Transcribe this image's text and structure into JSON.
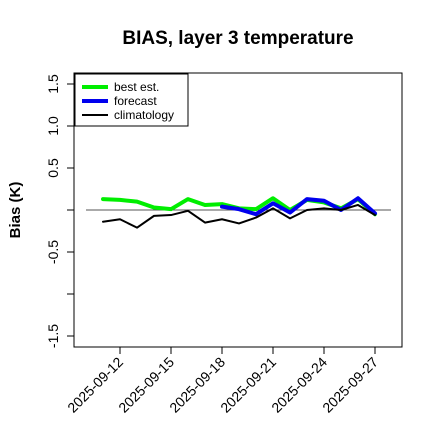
{
  "chart_data": {
    "type": "line",
    "title": "BIAS, layer 3 temperature",
    "xlabel": "",
    "ylabel": "Bias (K)",
    "x_ticks": [
      "2025-09-12",
      "2025-09-15",
      "2025-09-18",
      "2025-09-21",
      "2025-09-24",
      "2025-09-27"
    ],
    "highlight_tick": "2025-09-18",
    "highlight_color": "#228B22",
    "y_ticks": [
      "-1.5",
      "-0.5",
      "0.5",
      "1.0",
      "1.5"
    ],
    "ylim": [
      -1.6,
      1.65
    ],
    "xlim": [
      "2025-09-08",
      "2025-09-28"
    ],
    "reference_line": 0,
    "legend_position": "top-left",
    "grid": false,
    "series": [
      {
        "name": "best est.",
        "color": "#00ee00",
        "line_width": 4,
        "x": [
          "2025-09-11",
          "2025-09-12",
          "2025-09-13",
          "2025-09-14",
          "2025-09-15",
          "2025-09-16",
          "2025-09-17",
          "2025-09-18",
          "2025-09-19",
          "2025-09-20",
          "2025-09-21",
          "2025-09-22",
          "2025-09-23",
          "2025-09-24",
          "2025-09-25",
          "2025-09-26",
          "2025-09-27"
        ],
        "values": [
          0.13,
          0.12,
          0.1,
          0.03,
          0.01,
          0.13,
          0.06,
          0.07,
          0.02,
          0.01,
          0.14,
          0.0,
          0.12,
          0.09,
          0.02,
          0.13,
          -0.05
        ]
      },
      {
        "name": "forecast",
        "color": "#0000ee",
        "line_width": 4,
        "x": [
          "2025-09-18",
          "2025-09-19",
          "2025-09-20",
          "2025-09-21",
          "2025-09-22",
          "2025-09-23",
          "2025-09-24",
          "2025-09-25",
          "2025-09-26",
          "2025-09-27"
        ],
        "values": [
          0.04,
          0.01,
          -0.05,
          0.08,
          -0.03,
          0.13,
          0.11,
          0.0,
          0.14,
          -0.04
        ]
      },
      {
        "name": "climatology",
        "color": "#000000",
        "line_width": 2,
        "x": [
          "2025-09-11",
          "2025-09-12",
          "2025-09-13",
          "2025-09-14",
          "2025-09-15",
          "2025-09-16",
          "2025-09-17",
          "2025-09-18",
          "2025-09-19",
          "2025-09-20",
          "2025-09-21",
          "2025-09-22",
          "2025-09-23",
          "2025-09-24",
          "2025-09-25",
          "2025-09-26",
          "2025-09-27"
        ],
        "values": [
          -0.14,
          -0.11,
          -0.21,
          -0.07,
          -0.06,
          -0.01,
          -0.15,
          -0.11,
          -0.16,
          -0.09,
          0.02,
          -0.1,
          0.0,
          0.02,
          0.0,
          0.06,
          -0.06
        ]
      }
    ]
  }
}
